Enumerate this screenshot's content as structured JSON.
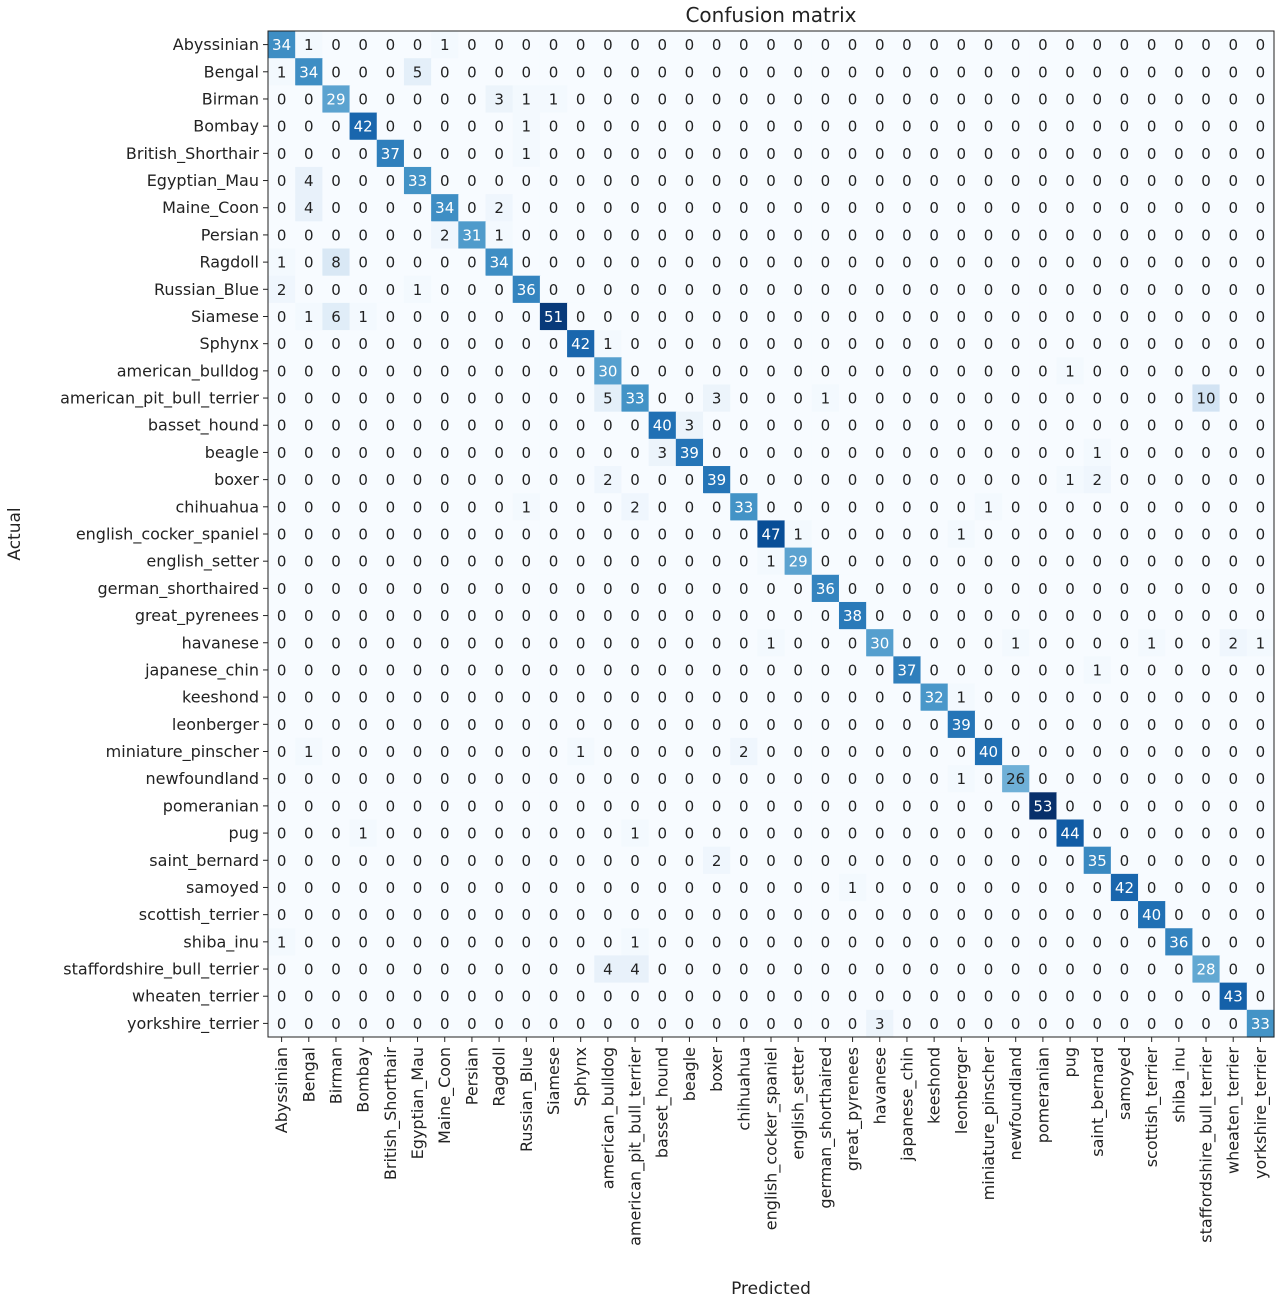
{
  "chart_data": {
    "type": "heatmap",
    "title": "Confusion matrix",
    "xlabel": "Predicted",
    "ylabel": "Actual",
    "colormap": "Blues",
    "colors": {
      "low": "#f7fbff",
      "high": "#08306b",
      "text_dark": "#222222",
      "text_light": "#ffffff"
    },
    "value_range": [
      0,
      53
    ],
    "labels": [
      "Abyssinian",
      "Bengal",
      "Birman",
      "Bombay",
      "British_Shorthair",
      "Egyptian_Mau",
      "Maine_Coon",
      "Persian",
      "Ragdoll",
      "Russian_Blue",
      "Siamese",
      "Sphynx",
      "american_bulldog",
      "american_pit_bull_terrier",
      "basset_hound",
      "beagle",
      "boxer",
      "chihuahua",
      "english_cocker_spaniel",
      "english_setter",
      "german_shorthaired",
      "great_pyrenees",
      "havanese",
      "japanese_chin",
      "keeshond",
      "leonberger",
      "miniature_pinscher",
      "newfoundland",
      "pomeranian",
      "pug",
      "saint_bernard",
      "samoyed",
      "scottish_terrier",
      "shiba_inu",
      "staffordshire_bull_terrier",
      "wheaten_terrier",
      "yorkshire_terrier"
    ],
    "matrix": [
      [
        34,
        1,
        0,
        0,
        0,
        0,
        1,
        0,
        0,
        0,
        0,
        0,
        0,
        0,
        0,
        0,
        0,
        0,
        0,
        0,
        0,
        0,
        0,
        0,
        0,
        0,
        0,
        0,
        0,
        0,
        0,
        0,
        0,
        0,
        0,
        0,
        0
      ],
      [
        1,
        34,
        0,
        0,
        0,
        5,
        0,
        0,
        0,
        0,
        0,
        0,
        0,
        0,
        0,
        0,
        0,
        0,
        0,
        0,
        0,
        0,
        0,
        0,
        0,
        0,
        0,
        0,
        0,
        0,
        0,
        0,
        0,
        0,
        0,
        0,
        0
      ],
      [
        0,
        0,
        29,
        0,
        0,
        0,
        0,
        0,
        3,
        1,
        1,
        0,
        0,
        0,
        0,
        0,
        0,
        0,
        0,
        0,
        0,
        0,
        0,
        0,
        0,
        0,
        0,
        0,
        0,
        0,
        0,
        0,
        0,
        0,
        0,
        0,
        0
      ],
      [
        0,
        0,
        0,
        42,
        0,
        0,
        0,
        0,
        0,
        1,
        0,
        0,
        0,
        0,
        0,
        0,
        0,
        0,
        0,
        0,
        0,
        0,
        0,
        0,
        0,
        0,
        0,
        0,
        0,
        0,
        0,
        0,
        0,
        0,
        0,
        0,
        0
      ],
      [
        0,
        0,
        0,
        0,
        37,
        0,
        0,
        0,
        0,
        1,
        0,
        0,
        0,
        0,
        0,
        0,
        0,
        0,
        0,
        0,
        0,
        0,
        0,
        0,
        0,
        0,
        0,
        0,
        0,
        0,
        0,
        0,
        0,
        0,
        0,
        0,
        0
      ],
      [
        0,
        4,
        0,
        0,
        0,
        33,
        0,
        0,
        0,
        0,
        0,
        0,
        0,
        0,
        0,
        0,
        0,
        0,
        0,
        0,
        0,
        0,
        0,
        0,
        0,
        0,
        0,
        0,
        0,
        0,
        0,
        0,
        0,
        0,
        0,
        0,
        0
      ],
      [
        0,
        4,
        0,
        0,
        0,
        0,
        34,
        0,
        2,
        0,
        0,
        0,
        0,
        0,
        0,
        0,
        0,
        0,
        0,
        0,
        0,
        0,
        0,
        0,
        0,
        0,
        0,
        0,
        0,
        0,
        0,
        0,
        0,
        0,
        0,
        0,
        0
      ],
      [
        0,
        0,
        0,
        0,
        0,
        0,
        2,
        31,
        1,
        0,
        0,
        0,
        0,
        0,
        0,
        0,
        0,
        0,
        0,
        0,
        0,
        0,
        0,
        0,
        0,
        0,
        0,
        0,
        0,
        0,
        0,
        0,
        0,
        0,
        0,
        0,
        0
      ],
      [
        1,
        0,
        8,
        0,
        0,
        0,
        0,
        0,
        34,
        0,
        0,
        0,
        0,
        0,
        0,
        0,
        0,
        0,
        0,
        0,
        0,
        0,
        0,
        0,
        0,
        0,
        0,
        0,
        0,
        0,
        0,
        0,
        0,
        0,
        0,
        0,
        0
      ],
      [
        2,
        0,
        0,
        0,
        0,
        1,
        0,
        0,
        0,
        36,
        0,
        0,
        0,
        0,
        0,
        0,
        0,
        0,
        0,
        0,
        0,
        0,
        0,
        0,
        0,
        0,
        0,
        0,
        0,
        0,
        0,
        0,
        0,
        0,
        0,
        0,
        0
      ],
      [
        0,
        1,
        6,
        1,
        0,
        0,
        0,
        0,
        0,
        0,
        51,
        0,
        0,
        0,
        0,
        0,
        0,
        0,
        0,
        0,
        0,
        0,
        0,
        0,
        0,
        0,
        0,
        0,
        0,
        0,
        0,
        0,
        0,
        0,
        0,
        0,
        0
      ],
      [
        0,
        0,
        0,
        0,
        0,
        0,
        0,
        0,
        0,
        0,
        0,
        42,
        1,
        0,
        0,
        0,
        0,
        0,
        0,
        0,
        0,
        0,
        0,
        0,
        0,
        0,
        0,
        0,
        0,
        0,
        0,
        0,
        0,
        0,
        0,
        0,
        0
      ],
      [
        0,
        0,
        0,
        0,
        0,
        0,
        0,
        0,
        0,
        0,
        0,
        0,
        30,
        0,
        0,
        0,
        0,
        0,
        0,
        0,
        0,
        0,
        0,
        0,
        0,
        0,
        0,
        0,
        0,
        1,
        0,
        0,
        0,
        0,
        0,
        0,
        0
      ],
      [
        0,
        0,
        0,
        0,
        0,
        0,
        0,
        0,
        0,
        0,
        0,
        0,
        5,
        33,
        0,
        0,
        3,
        0,
        0,
        0,
        1,
        0,
        0,
        0,
        0,
        0,
        0,
        0,
        0,
        0,
        0,
        0,
        0,
        0,
        10,
        0,
        0
      ],
      [
        0,
        0,
        0,
        0,
        0,
        0,
        0,
        0,
        0,
        0,
        0,
        0,
        0,
        0,
        40,
        3,
        0,
        0,
        0,
        0,
        0,
        0,
        0,
        0,
        0,
        0,
        0,
        0,
        0,
        0,
        0,
        0,
        0,
        0,
        0,
        0,
        0
      ],
      [
        0,
        0,
        0,
        0,
        0,
        0,
        0,
        0,
        0,
        0,
        0,
        0,
        0,
        0,
        3,
        39,
        0,
        0,
        0,
        0,
        0,
        0,
        0,
        0,
        0,
        0,
        0,
        0,
        0,
        0,
        1,
        0,
        0,
        0,
        0,
        0,
        0
      ],
      [
        0,
        0,
        0,
        0,
        0,
        0,
        0,
        0,
        0,
        0,
        0,
        0,
        2,
        0,
        0,
        0,
        39,
        0,
        0,
        0,
        0,
        0,
        0,
        0,
        0,
        0,
        0,
        0,
        0,
        1,
        2,
        0,
        0,
        0,
        0,
        0,
        0
      ],
      [
        0,
        0,
        0,
        0,
        0,
        0,
        0,
        0,
        0,
        1,
        0,
        0,
        0,
        2,
        0,
        0,
        0,
        33,
        0,
        0,
        0,
        0,
        0,
        0,
        0,
        0,
        1,
        0,
        0,
        0,
        0,
        0,
        0,
        0,
        0,
        0,
        0
      ],
      [
        0,
        0,
        0,
        0,
        0,
        0,
        0,
        0,
        0,
        0,
        0,
        0,
        0,
        0,
        0,
        0,
        0,
        0,
        47,
        1,
        0,
        0,
        0,
        0,
        0,
        1,
        0,
        0,
        0,
        0,
        0,
        0,
        0,
        0,
        0,
        0,
        0
      ],
      [
        0,
        0,
        0,
        0,
        0,
        0,
        0,
        0,
        0,
        0,
        0,
        0,
        0,
        0,
        0,
        0,
        0,
        0,
        1,
        29,
        0,
        0,
        0,
        0,
        0,
        0,
        0,
        0,
        0,
        0,
        0,
        0,
        0,
        0,
        0,
        0,
        0
      ],
      [
        0,
        0,
        0,
        0,
        0,
        0,
        0,
        0,
        0,
        0,
        0,
        0,
        0,
        0,
        0,
        0,
        0,
        0,
        0,
        0,
        36,
        0,
        0,
        0,
        0,
        0,
        0,
        0,
        0,
        0,
        0,
        0,
        0,
        0,
        0,
        0,
        0
      ],
      [
        0,
        0,
        0,
        0,
        0,
        0,
        0,
        0,
        0,
        0,
        0,
        0,
        0,
        0,
        0,
        0,
        0,
        0,
        0,
        0,
        0,
        38,
        0,
        0,
        0,
        0,
        0,
        0,
        0,
        0,
        0,
        0,
        0,
        0,
        0,
        0,
        0
      ],
      [
        0,
        0,
        0,
        0,
        0,
        0,
        0,
        0,
        0,
        0,
        0,
        0,
        0,
        0,
        0,
        0,
        0,
        0,
        1,
        0,
        0,
        0,
        30,
        0,
        0,
        0,
        0,
        1,
        0,
        0,
        0,
        0,
        1,
        0,
        0,
        2,
        1
      ],
      [
        0,
        0,
        0,
        0,
        0,
        0,
        0,
        0,
        0,
        0,
        0,
        0,
        0,
        0,
        0,
        0,
        0,
        0,
        0,
        0,
        0,
        0,
        0,
        37,
        0,
        0,
        0,
        0,
        0,
        0,
        1,
        0,
        0,
        0,
        0,
        0,
        0
      ],
      [
        0,
        0,
        0,
        0,
        0,
        0,
        0,
        0,
        0,
        0,
        0,
        0,
        0,
        0,
        0,
        0,
        0,
        0,
        0,
        0,
        0,
        0,
        0,
        0,
        32,
        1,
        0,
        0,
        0,
        0,
        0,
        0,
        0,
        0,
        0,
        0,
        0
      ],
      [
        0,
        0,
        0,
        0,
        0,
        0,
        0,
        0,
        0,
        0,
        0,
        0,
        0,
        0,
        0,
        0,
        0,
        0,
        0,
        0,
        0,
        0,
        0,
        0,
        0,
        39,
        0,
        0,
        0,
        0,
        0,
        0,
        0,
        0,
        0,
        0,
        0
      ],
      [
        0,
        1,
        0,
        0,
        0,
        0,
        0,
        0,
        0,
        0,
        0,
        1,
        0,
        0,
        0,
        0,
        0,
        2,
        0,
        0,
        0,
        0,
        0,
        0,
        0,
        0,
        40,
        0,
        0,
        0,
        0,
        0,
        0,
        0,
        0,
        0,
        0
      ],
      [
        0,
        0,
        0,
        0,
        0,
        0,
        0,
        0,
        0,
        0,
        0,
        0,
        0,
        0,
        0,
        0,
        0,
        0,
        0,
        0,
        0,
        0,
        0,
        0,
        0,
        1,
        0,
        26,
        0,
        0,
        0,
        0,
        0,
        0,
        0,
        0,
        0
      ],
      [
        0,
        0,
        0,
        0,
        0,
        0,
        0,
        0,
        0,
        0,
        0,
        0,
        0,
        0,
        0,
        0,
        0,
        0,
        0,
        0,
        0,
        0,
        0,
        0,
        0,
        0,
        0,
        0,
        53,
        0,
        0,
        0,
        0,
        0,
        0,
        0,
        0
      ],
      [
        0,
        0,
        0,
        1,
        0,
        0,
        0,
        0,
        0,
        0,
        0,
        0,
        0,
        1,
        0,
        0,
        0,
        0,
        0,
        0,
        0,
        0,
        0,
        0,
        0,
        0,
        0,
        0,
        0,
        44,
        0,
        0,
        0,
        0,
        0,
        0,
        0
      ],
      [
        0,
        0,
        0,
        0,
        0,
        0,
        0,
        0,
        0,
        0,
        0,
        0,
        0,
        0,
        0,
        0,
        2,
        0,
        0,
        0,
        0,
        0,
        0,
        0,
        0,
        0,
        0,
        0,
        0,
        0,
        35,
        0,
        0,
        0,
        0,
        0,
        0
      ],
      [
        0,
        0,
        0,
        0,
        0,
        0,
        0,
        0,
        0,
        0,
        0,
        0,
        0,
        0,
        0,
        0,
        0,
        0,
        0,
        0,
        0,
        1,
        0,
        0,
        0,
        0,
        0,
        0,
        0,
        0,
        0,
        42,
        0,
        0,
        0,
        0,
        0
      ],
      [
        0,
        0,
        0,
        0,
        0,
        0,
        0,
        0,
        0,
        0,
        0,
        0,
        0,
        0,
        0,
        0,
        0,
        0,
        0,
        0,
        0,
        0,
        0,
        0,
        0,
        0,
        0,
        0,
        0,
        0,
        0,
        0,
        40,
        0,
        0,
        0,
        0
      ],
      [
        1,
        0,
        0,
        0,
        0,
        0,
        0,
        0,
        0,
        0,
        0,
        0,
        0,
        1,
        0,
        0,
        0,
        0,
        0,
        0,
        0,
        0,
        0,
        0,
        0,
        0,
        0,
        0,
        0,
        0,
        0,
        0,
        0,
        36,
        0,
        0,
        0
      ],
      [
        0,
        0,
        0,
        0,
        0,
        0,
        0,
        0,
        0,
        0,
        0,
        0,
        4,
        4,
        0,
        0,
        0,
        0,
        0,
        0,
        0,
        0,
        0,
        0,
        0,
        0,
        0,
        0,
        0,
        0,
        0,
        0,
        0,
        0,
        28,
        0,
        0
      ],
      [
        0,
        0,
        0,
        0,
        0,
        0,
        0,
        0,
        0,
        0,
        0,
        0,
        0,
        0,
        0,
        0,
        0,
        0,
        0,
        0,
        0,
        0,
        0,
        0,
        0,
        0,
        0,
        0,
        0,
        0,
        0,
        0,
        0,
        0,
        0,
        43,
        0
      ],
      [
        0,
        0,
        0,
        0,
        0,
        0,
        0,
        0,
        0,
        0,
        0,
        0,
        0,
        0,
        0,
        0,
        0,
        0,
        0,
        0,
        0,
        0,
        3,
        0,
        0,
        0,
        0,
        0,
        0,
        0,
        0,
        0,
        0,
        0,
        0,
        0,
        33
      ]
    ]
  }
}
